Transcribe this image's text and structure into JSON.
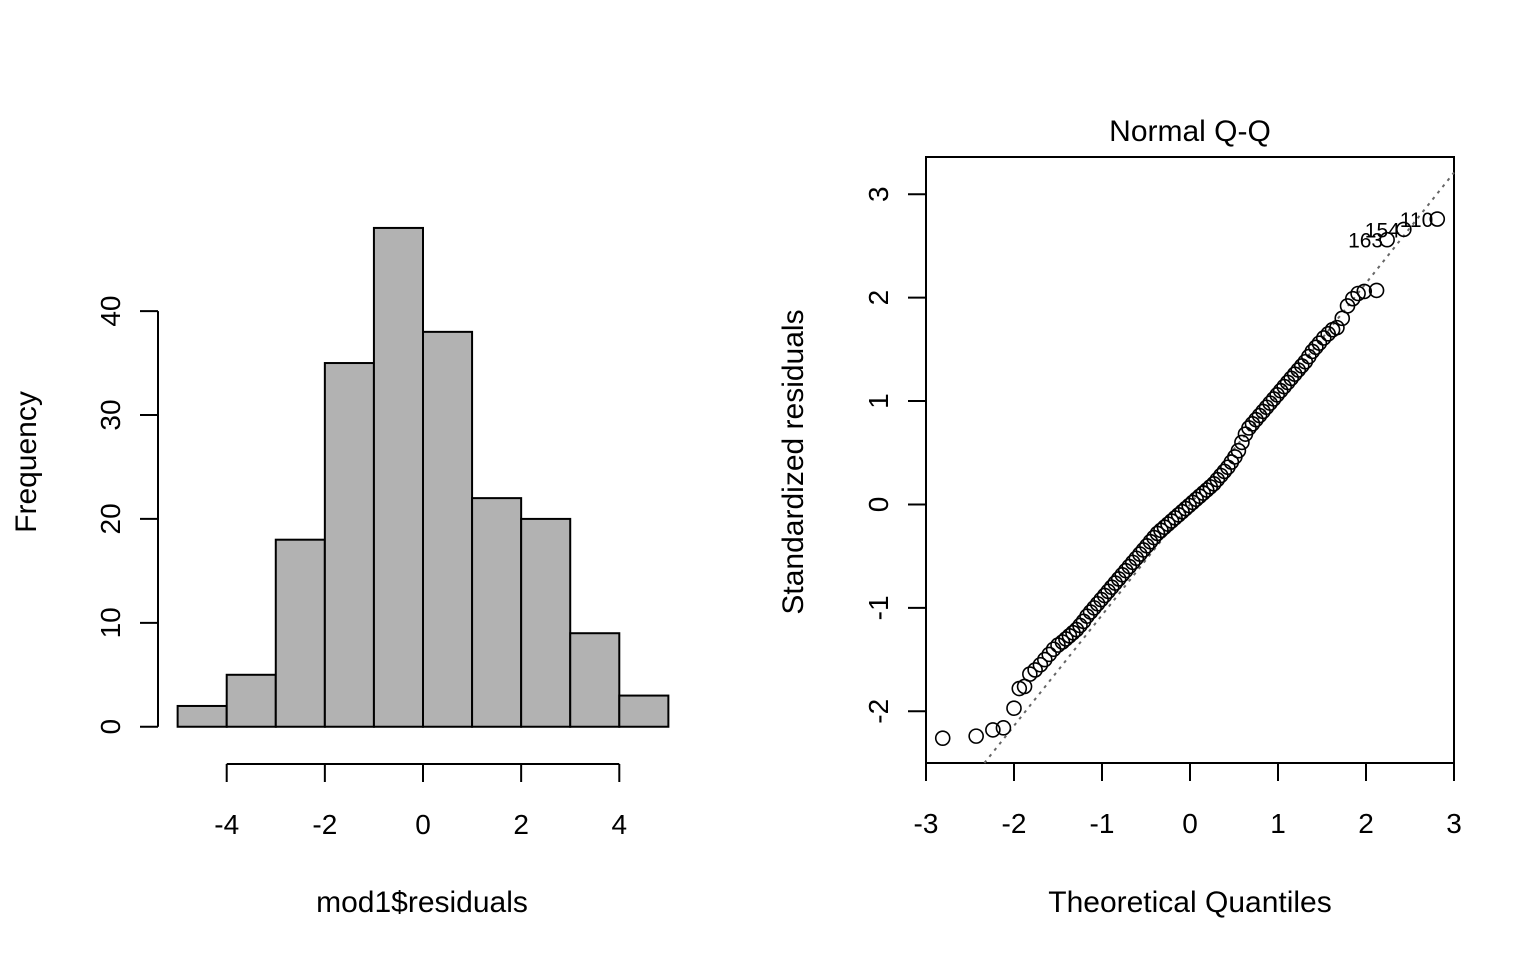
{
  "chart_data": [
    {
      "type": "bar",
      "title": "",
      "xlabel": "mod1$residuals",
      "ylabel": "Frequency",
      "bin_edges": [
        -5,
        -4,
        -3,
        -2,
        -1,
        0,
        1,
        2,
        3,
        4,
        5
      ],
      "values": [
        2,
        5,
        18,
        35,
        48,
        38,
        22,
        20,
        9,
        3
      ],
      "xticks": [
        -4,
        -2,
        0,
        2,
        4
      ],
      "xtick_labels": [
        "-4",
        "-2",
        "0",
        "2",
        "4"
      ],
      "yticks": [
        0,
        10,
        20,
        30,
        40
      ],
      "ytick_labels": [
        "0",
        "10",
        "20",
        "30",
        "40"
      ],
      "xlim": [
        -5.4,
        5.4
      ],
      "ylim": [
        -3.2,
        55.5
      ],
      "bar_color": "#b2b2b2",
      "grid": false
    },
    {
      "type": "scatter",
      "title": "Normal Q-Q",
      "xlabel": "Theoretical Quantiles",
      "ylabel": "Standardized residuals",
      "xlim": [
        -3.0,
        3.0
      ],
      "ylim": [
        -2.5,
        3.36
      ],
      "xticks": [
        -3,
        -2,
        -1,
        0,
        1,
        2,
        3
      ],
      "xtick_labels": [
        "-3",
        "-2",
        "-1",
        "0",
        "1",
        "2",
        "3"
      ],
      "yticks": [
        -2,
        -1,
        0,
        1,
        2,
        3
      ],
      "ytick_labels": [
        "-2",
        "-1",
        "0",
        "1",
        "2",
        "3"
      ],
      "reference_line": {
        "intercept": 0.0,
        "slope": 1.07,
        "style": "dotted",
        "color": "#666666"
      },
      "points": {
        "x": [
          -2.81,
          -2.43,
          -2.24,
          -2.12,
          -2.0,
          -1.94,
          -1.88,
          -1.82,
          -1.76,
          -1.7,
          -1.65,
          -1.6,
          -1.55,
          -1.5,
          -1.45,
          -1.41,
          -1.37,
          -1.33,
          -1.29,
          -1.25,
          -1.21,
          -1.17,
          -1.13,
          -1.09,
          -1.05,
          -1.01,
          -0.97,
          -0.93,
          -0.89,
          -0.85,
          -0.81,
          -0.77,
          -0.73,
          -0.69,
          -0.65,
          -0.61,
          -0.57,
          -0.53,
          -0.49,
          -0.45,
          -0.41,
          -0.37,
          -0.33,
          -0.29,
          -0.25,
          -0.21,
          -0.17,
          -0.13,
          -0.09,
          -0.05,
          -0.01,
          0.03,
          0.07,
          0.11,
          0.15,
          0.19,
          0.23,
          0.27,
          0.31,
          0.35,
          0.39,
          0.43,
          0.47,
          0.51,
          0.55,
          0.59,
          0.63,
          0.67,
          0.71,
          0.75,
          0.79,
          0.83,
          0.87,
          0.91,
          0.95,
          0.99,
          1.03,
          1.07,
          1.11,
          1.15,
          1.19,
          1.23,
          1.27,
          1.31,
          1.35,
          1.39,
          1.43,
          1.47,
          1.52,
          1.57,
          1.62,
          1.67,
          1.73,
          1.79,
          1.85,
          1.91,
          1.98,
          2.12,
          2.24,
          2.43,
          2.81
        ],
        "y": [
          -2.26,
          -2.24,
          -2.18,
          -2.16,
          -1.97,
          -1.78,
          -1.76,
          -1.64,
          -1.6,
          -1.55,
          -1.5,
          -1.45,
          -1.4,
          -1.36,
          -1.33,
          -1.3,
          -1.27,
          -1.24,
          -1.21,
          -1.17,
          -1.13,
          -1.08,
          -1.04,
          -1.0,
          -0.96,
          -0.92,
          -0.88,
          -0.84,
          -0.8,
          -0.76,
          -0.72,
          -0.68,
          -0.64,
          -0.6,
          -0.56,
          -0.52,
          -0.48,
          -0.44,
          -0.4,
          -0.36,
          -0.32,
          -0.28,
          -0.25,
          -0.22,
          -0.19,
          -0.16,
          -0.13,
          -0.1,
          -0.07,
          -0.04,
          -0.01,
          0.02,
          0.05,
          0.08,
          0.11,
          0.14,
          0.17,
          0.2,
          0.24,
          0.28,
          0.32,
          0.36,
          0.41,
          0.46,
          0.52,
          0.6,
          0.68,
          0.74,
          0.78,
          0.82,
          0.86,
          0.9,
          0.94,
          0.98,
          1.02,
          1.06,
          1.1,
          1.14,
          1.18,
          1.22,
          1.26,
          1.3,
          1.34,
          1.38,
          1.43,
          1.48,
          1.52,
          1.56,
          1.61,
          1.65,
          1.69,
          1.71,
          1.8,
          1.92,
          1.99,
          2.04,
          2.06,
          2.07,
          2.56,
          2.66,
          2.76
        ]
      },
      "point_labels": [
        {
          "text": "110",
          "x": 2.81,
          "y": 2.76
        },
        {
          "text": "154",
          "x": 2.43,
          "y": 2.66
        },
        {
          "text": "163",
          "x": 2.24,
          "y": 2.56
        }
      ],
      "grid": false
    }
  ]
}
